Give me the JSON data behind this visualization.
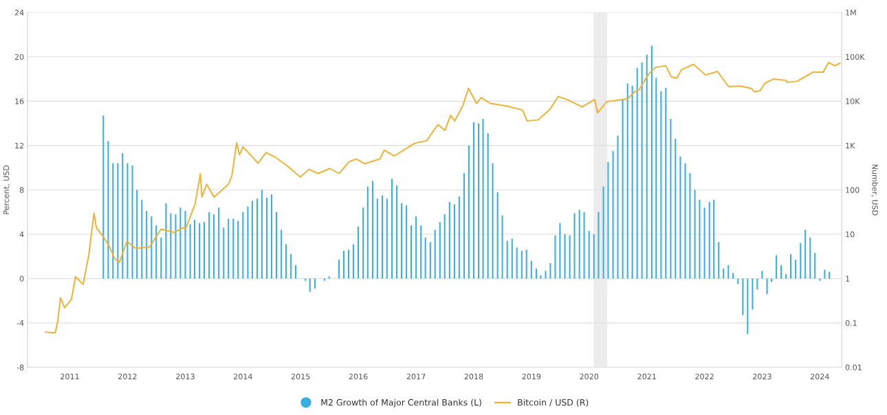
{
  "chart_data": {
    "type": "bar",
    "ylabel": "Percent, USD",
    "y2label": "Number, USD",
    "xlim": [
      "2010-04-08",
      "2024-05-19"
    ],
    "xticks": [
      {
        "value": "2011",
        "label": "2011"
      },
      {
        "value": "2012",
        "label": "2012"
      },
      {
        "value": "2013",
        "label": "2013"
      },
      {
        "value": "2014",
        "label": "2014"
      },
      {
        "value": "2015",
        "label": "2015"
      },
      {
        "value": "2016",
        "label": "2016"
      },
      {
        "value": "2017",
        "label": "2017"
      },
      {
        "value": "2018",
        "label": "2018"
      },
      {
        "value": "2019",
        "label": "2019"
      },
      {
        "value": "2020",
        "label": "2020"
      },
      {
        "value": "2021",
        "label": "2021"
      },
      {
        "value": "2022",
        "label": "2022"
      },
      {
        "value": "2023",
        "label": "2023"
      },
      {
        "value": "2024",
        "label": "2024"
      }
    ],
    "ylim": [
      -8,
      24
    ],
    "yticks": [
      -8,
      -4,
      0,
      4,
      8,
      12,
      16,
      20,
      24
    ],
    "y2lim": [
      0.01,
      1000000
    ],
    "y2ticks": [
      {
        "value": 0.01,
        "label": "0.01"
      },
      {
        "value": 0.1,
        "label": "0.1"
      },
      {
        "value": 1,
        "label": "1"
      },
      {
        "value": 10,
        "label": "10"
      },
      {
        "value": 100,
        "label": "100"
      },
      {
        "value": 1000,
        "label": "1K"
      },
      {
        "value": 10000,
        "label": "10K"
      },
      {
        "value": 100000,
        "label": "100K"
      },
      {
        "value": 1000000,
        "label": "1M"
      }
    ],
    "log": "y2",
    "grid": "y",
    "legend": "bottom",
    "bands": [
      {
        "axis": "x",
        "from": "2020-01-30",
        "to": "2020-04-25",
        "color": "#ececec"
      }
    ],
    "series": [
      {
        "name": "M2 Growth of Major Central Banks (L)",
        "color": "#3aaee0",
        "marker": "circle",
        "x": [
          "2011-08",
          "2011-09",
          "2011-10",
          "2011-11",
          "2011-12",
          "2012-01",
          "2012-02",
          "2012-03",
          "2012-04",
          "2012-05",
          "2012-06",
          "2012-07",
          "2012-08",
          "2012-09",
          "2012-10",
          "2012-11",
          "2012-12",
          "2013-01",
          "2013-02",
          "2013-03",
          "2013-04",
          "2013-05",
          "2013-06",
          "2013-07",
          "2013-08",
          "2013-09",
          "2013-10",
          "2013-11",
          "2013-12",
          "2014-01",
          "2014-02",
          "2014-03",
          "2014-04",
          "2014-05",
          "2014-06",
          "2014-07",
          "2014-08",
          "2014-09",
          "2014-10",
          "2014-11",
          "2014-12",
          "2015-01",
          "2015-02",
          "2015-03",
          "2015-04",
          "2015-05",
          "2015-06",
          "2015-07",
          "2015-08",
          "2015-09",
          "2015-10",
          "2015-11",
          "2015-12",
          "2016-01",
          "2016-02",
          "2016-03",
          "2016-04",
          "2016-05",
          "2016-06",
          "2016-07",
          "2016-08",
          "2016-09",
          "2016-10",
          "2016-11",
          "2016-12",
          "2017-01",
          "2017-02",
          "2017-03",
          "2017-04",
          "2017-05",
          "2017-06",
          "2017-07",
          "2017-08",
          "2017-09",
          "2017-10",
          "2017-11",
          "2017-12",
          "2018-01",
          "2018-02",
          "2018-03",
          "2018-04",
          "2018-05",
          "2018-06",
          "2018-07",
          "2018-08",
          "2018-09",
          "2018-10",
          "2018-11",
          "2018-12",
          "2019-01",
          "2019-02",
          "2019-03",
          "2019-04",
          "2019-05",
          "2019-06",
          "2019-07",
          "2019-08",
          "2019-09",
          "2019-10",
          "2019-11",
          "2019-12",
          "2020-01",
          "2020-02",
          "2020-03",
          "2020-04",
          "2020-05",
          "2020-06",
          "2020-07",
          "2020-08",
          "2020-09",
          "2020-10",
          "2020-11",
          "2020-12",
          "2021-01",
          "2021-02",
          "2021-03",
          "2021-04",
          "2021-05",
          "2021-06",
          "2021-07",
          "2021-08",
          "2021-09",
          "2021-10",
          "2021-11",
          "2021-12",
          "2022-01",
          "2022-02",
          "2022-03",
          "2022-04",
          "2022-05",
          "2022-06",
          "2022-07",
          "2022-08",
          "2022-09",
          "2022-10",
          "2022-11",
          "2022-12",
          "2023-01",
          "2023-02",
          "2023-03",
          "2023-04",
          "2023-05",
          "2023-06",
          "2023-07",
          "2023-08",
          "2023-09",
          "2023-10",
          "2023-11",
          "2023-12",
          "2024-01",
          "2024-02",
          "2024-03"
        ],
        "values": [
          14.7,
          12.4,
          10.4,
          10.4,
          11.3,
          10.4,
          10.2,
          8.0,
          7.1,
          6.1,
          5.6,
          4.8,
          3.7,
          6.8,
          5.9,
          5.8,
          6.4,
          6.1,
          4.9,
          5.3,
          5.0,
          5.1,
          6.0,
          5.8,
          6.4,
          4.6,
          5.4,
          5.4,
          5.2,
          6.0,
          6.5,
          7.0,
          7.2,
          8.0,
          7.3,
          7.6,
          6.0,
          4.4,
          3.1,
          2.2,
          1.2,
          0,
          -0.2,
          -1.2,
          -0.9,
          0,
          -0.2,
          0.2,
          0,
          1.7,
          2.5,
          2.6,
          3.1,
          4.7,
          6.4,
          8.3,
          8.8,
          7.2,
          7.5,
          7.2,
          9.0,
          8.4,
          6.8,
          6.6,
          4.8,
          5.6,
          4.8,
          3.7,
          3.3,
          4.4,
          5.1,
          5.8,
          6.9,
          6.7,
          7.4,
          9.5,
          12.0,
          14.1,
          14.0,
          14.4,
          13.1,
          10.4,
          7.8,
          5.7,
          3.4,
          3.6,
          2.8,
          2.5,
          2.6,
          1.6,
          0.9,
          0.3,
          0.7,
          1.4,
          3.9,
          5.0,
          4.0,
          3.9,
          5.9,
          6.2,
          6.0,
          4.3,
          4.0,
          6.0,
          8.3,
          10.5,
          11.5,
          12.9,
          16.2,
          17.6,
          17.4,
          19.0,
          19.5,
          20.2,
          21.0,
          18.1,
          16.9,
          17.2,
          14.4,
          12.6,
          11.0,
          10.4,
          9.5,
          8.0,
          7.1,
          6.4,
          6.9,
          7.1,
          3.3,
          0.9,
          1.2,
          0.5,
          -0.5,
          -3.3,
          -5.0,
          -2.8,
          -1.0,
          0.7,
          -1.4,
          -0.3,
          2.1,
          1.2,
          0.4,
          2.2,
          1.7,
          3.2,
          4.4,
          3.7,
          2.3,
          -0.2,
          0.8,
          0.6
        ]
      },
      {
        "name": "Bitcoin / USD (R)",
        "type": "line",
        "axis": "y2",
        "color": "#f0b030",
        "marker": "none",
        "line_style": "solid",
        "x": [
          "2010-07-31",
          "2010-10-01",
          "2010-10-16",
          "2010-11-03",
          "2010-11-29",
          "2011-01-11",
          "2011-02-06",
          "2011-03-26",
          "2011-05-01",
          "2011-06-03",
          "2011-06-18",
          "2011-07-31",
          "2011-09-06",
          "2011-10-12",
          "2011-11-10",
          "2011-12-28",
          "2012-02-21",
          "2012-05-19",
          "2012-07-31",
          "2012-10-23",
          "2012-12-20",
          "2013-01-04",
          "2013-03-04",
          "2013-04-06",
          "2013-04-16",
          "2013-05-16",
          "2013-07-02",
          "2013-10-01",
          "2013-10-23",
          "2013-11-22",
          "2013-12-10",
          "2014-01-01",
          "2014-04-06",
          "2014-05-27",
          "2014-07-24",
          "2014-10-05",
          "2014-12-30",
          "2015-02-24",
          "2015-04-23",
          "2015-07-05",
          "2015-09-02",
          "2015-11-03",
          "2015-12-20",
          "2016-02-10",
          "2016-05-16",
          "2016-06-14",
          "2016-08-15",
          "2016-12-24",
          "2017-03-08",
          "2017-05-19",
          "2017-07-02",
          "2017-08-08",
          "2017-09-02",
          "2017-10-23",
          "2017-11-29",
          "2018-01-19",
          "2018-02-17",
          "2018-04-16",
          "2018-07-27",
          "2018-11-06",
          "2018-12-05",
          "2019-02-14",
          "2019-04-28",
          "2019-06-21",
          "2019-08-22",
          "2019-11-18",
          "2020-02-06",
          "2020-02-24",
          "2020-04-23",
          "2020-07-05",
          "2020-09-02",
          "2020-10-16",
          "2020-11-14",
          "2021-01-11",
          "2021-02-24",
          "2021-05-01",
          "2021-06-03",
          "2021-07-09",
          "2021-08-08",
          "2021-10-23",
          "2022-01-08",
          "2022-03-24",
          "2022-06-03",
          "2022-08-15",
          "2022-10-23",
          "2022-11-14",
          "2022-12-20",
          "2023-01-19",
          "2023-03-15",
          "2023-05-30",
          "2023-06-10",
          "2023-08-08",
          "2023-10-08",
          "2023-11-18",
          "2024-01-23",
          "2024-02-25",
          "2024-04-06",
          "2024-05-08"
        ],
        "values": [
          0.062,
          0.06,
          0.11,
          0.37,
          0.22,
          0.34,
          1.1,
          0.74,
          3.4,
          30,
          14,
          8.9,
          5.5,
          2.8,
          2.3,
          6.9,
          4.8,
          5.1,
          13,
          11,
          14,
          13.5,
          48,
          230,
          69,
          134,
          69,
          134,
          207,
          1150,
          617,
          936,
          400,
          692,
          547,
          356,
          195,
          291,
          234,
          303,
          234,
          428,
          496,
          389,
          496,
          786,
          580,
          1130,
          1280,
          2970,
          2190,
          4820,
          3570,
          7800,
          19500,
          8900,
          12000,
          8900,
          7800,
          6300,
          3570,
          3800,
          6560,
          12800,
          10600,
          7400,
          10900,
          5450,
          9750,
          10600,
          11300,
          16200,
          18300,
          40300,
          57600,
          63000,
          35500,
          33000,
          51300,
          67700,
          38900,
          46800,
          21300,
          21900,
          19500,
          16200,
          17300,
          25700,
          31600,
          29500,
          26500,
          28000,
          37000,
          45000,
          45000,
          74600,
          63000,
          72000
        ]
      }
    ]
  }
}
